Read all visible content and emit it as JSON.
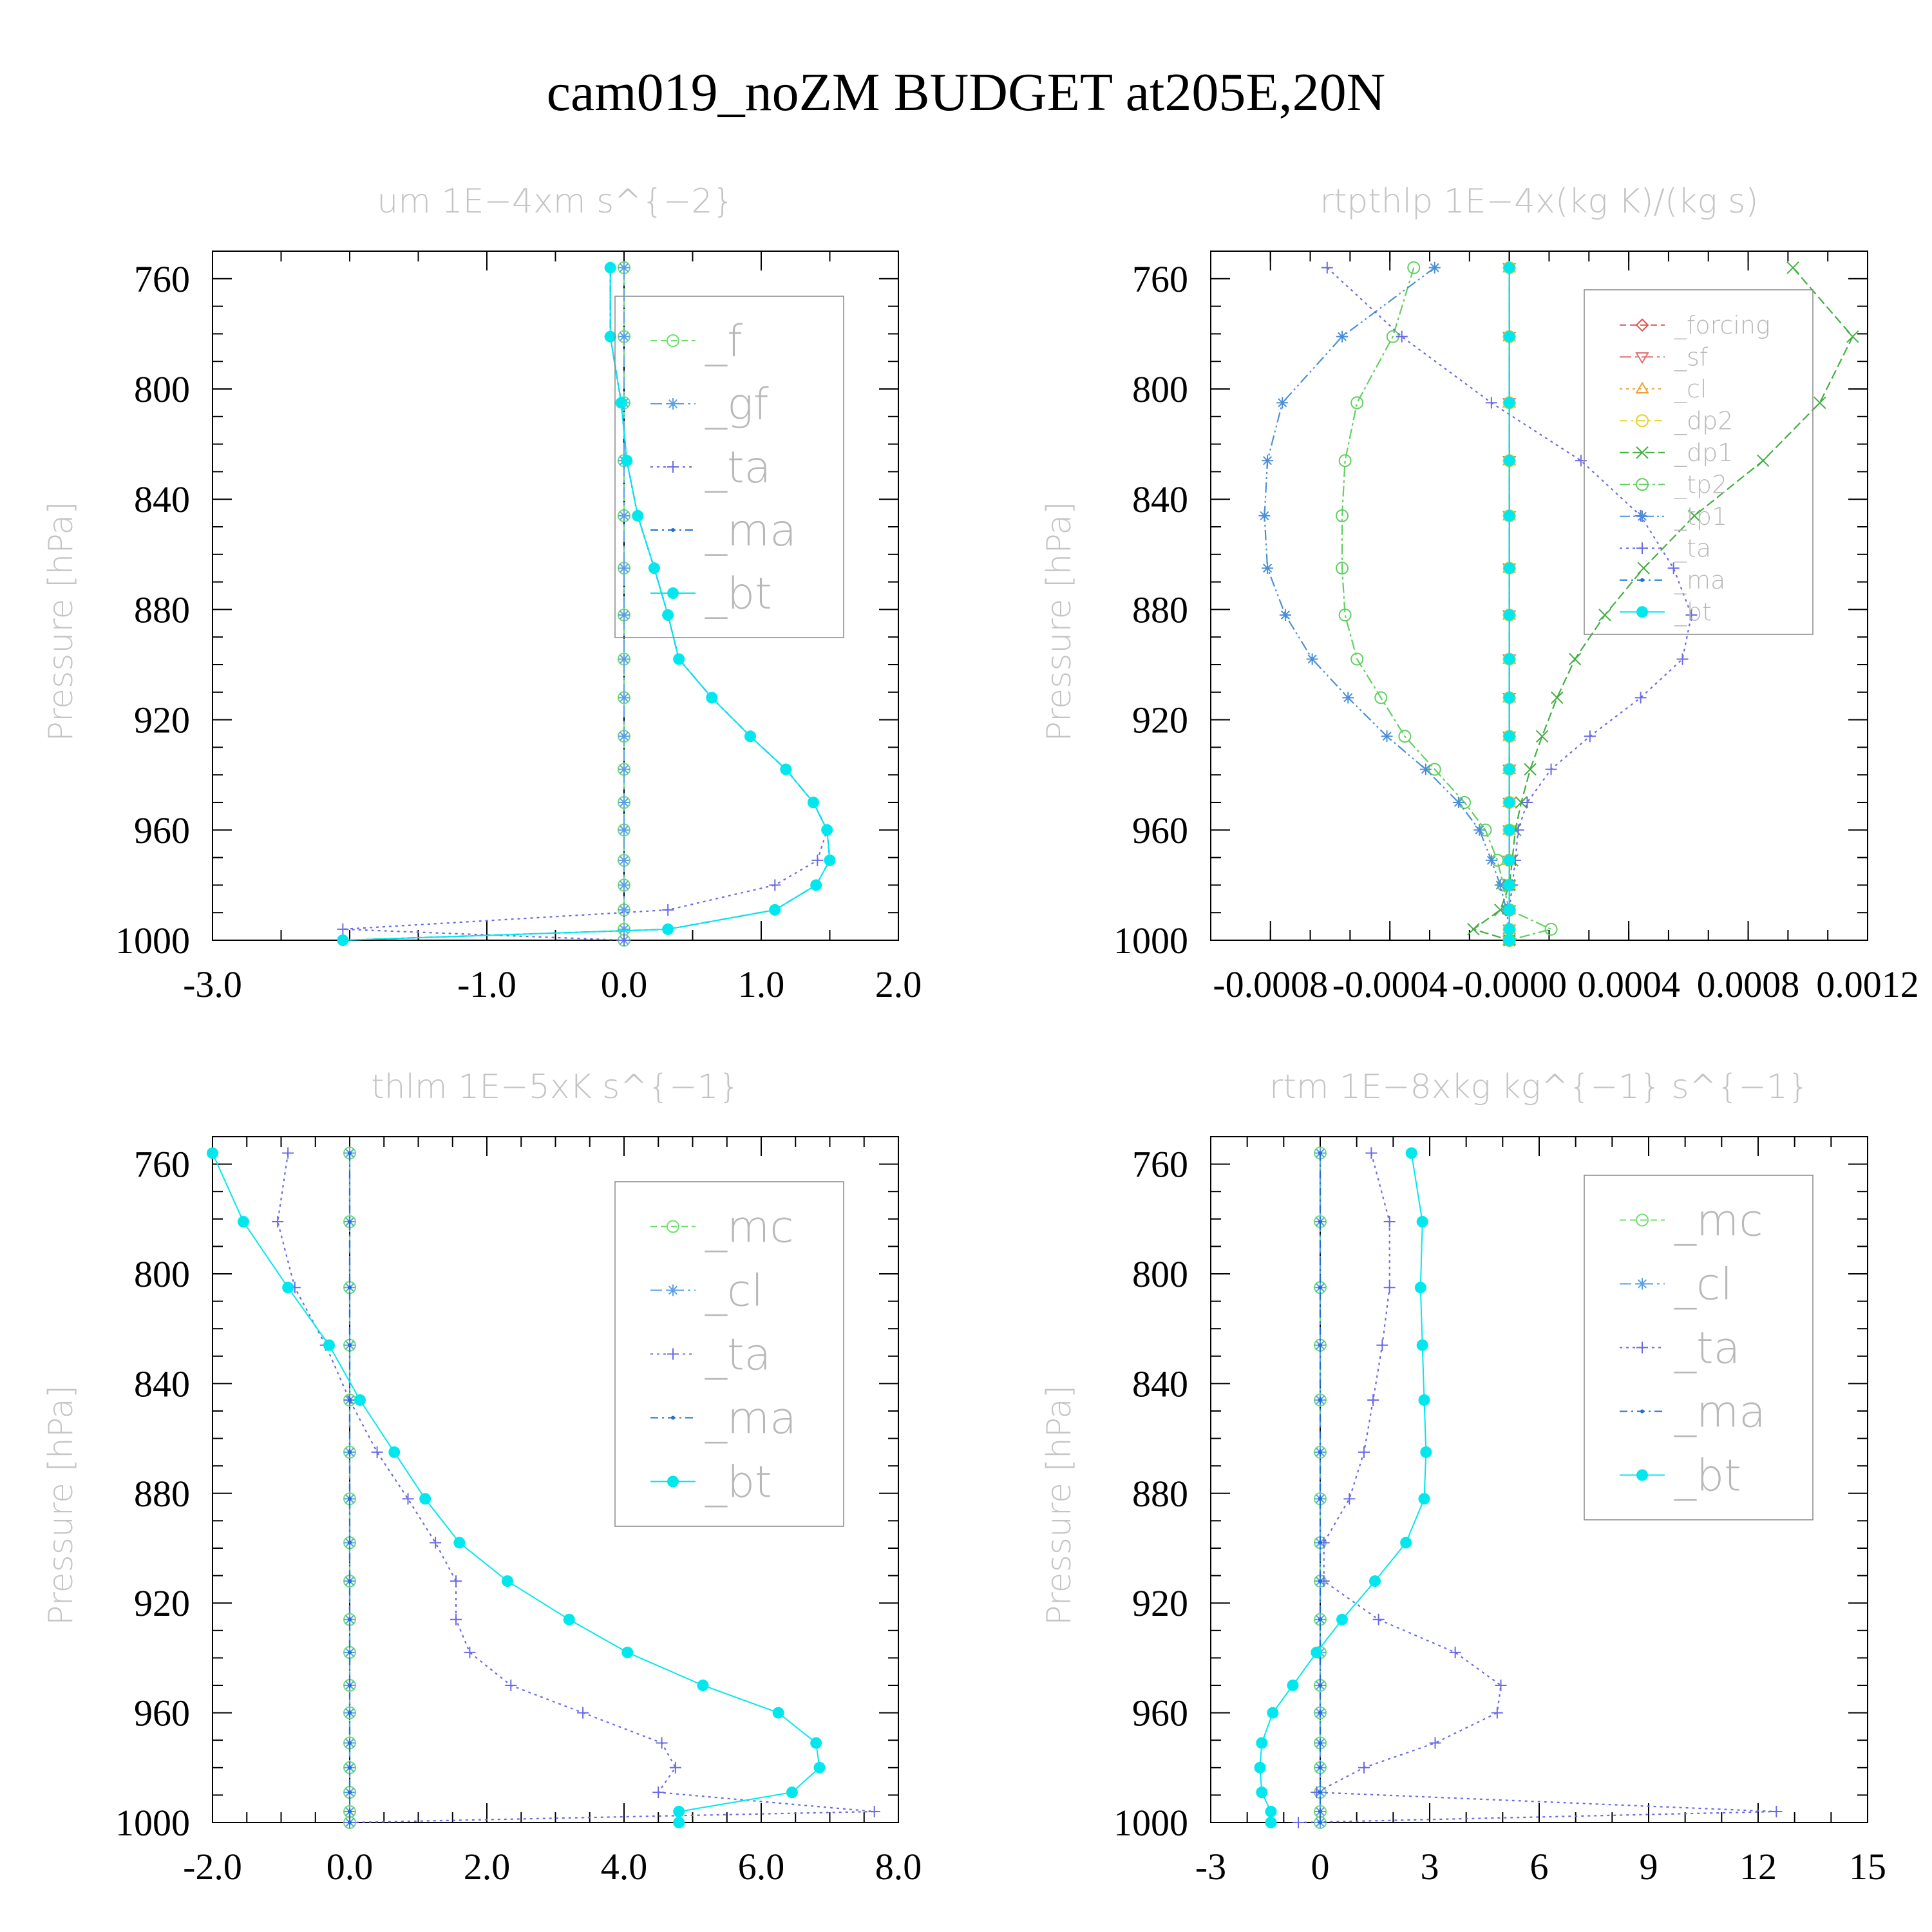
{
  "figure": {
    "title": "cam019_noZM  BUDGET at205E,20N"
  },
  "chart_data": [
    {
      "id": "um",
      "type": "line",
      "title": "um   1E−4xm s^{−2}",
      "ylabel": "Pressure [hPa]",
      "xlim": [
        -3.0,
        2.0
      ],
      "ylim": [
        1000,
        750
      ],
      "xticks": [
        "-3.0",
        "-1.0",
        "0.0",
        "1.0",
        "2.0"
      ],
      "xtick_values": [
        -3.0,
        -1.0,
        0.0,
        1.0,
        2.0
      ],
      "yticks": [
        "760",
        "800",
        "840",
        "880",
        "920",
        "960",
        "1000"
      ],
      "legend_position": "top-right",
      "levels": [
        756,
        781,
        805,
        826,
        846,
        865,
        882,
        898,
        912,
        926,
        938,
        950,
        960,
        971,
        980,
        989,
        996,
        1000
      ],
      "series": [
        {
          "name": "_f",
          "color": "#6fe06f",
          "marker": "circle",
          "dash": "10,6",
          "values": [
            0,
            0,
            0,
            0,
            0,
            0,
            0,
            0,
            0,
            0,
            0,
            0,
            0,
            0,
            0,
            0,
            0,
            0
          ]
        },
        {
          "name": "_gf",
          "color": "#5aa0e6",
          "marker": "star",
          "dash": "18,6,4,6",
          "values": [
            0,
            0,
            0,
            0,
            0,
            0,
            0,
            0,
            0,
            0,
            0,
            0,
            0,
            0,
            0,
            0,
            0,
            0
          ]
        },
        {
          "name": "_ta",
          "color": "#6a6ae6",
          "marker": "plus",
          "dash": "4,6",
          "values": [
            -0.1,
            -0.1,
            -0.02,
            0.02,
            0.1,
            0.22,
            0.32,
            0.4,
            0.64,
            0.92,
            1.18,
            1.38,
            1.48,
            1.41,
            1.1,
            0.32,
            -2.05,
            0.0
          ]
        },
        {
          "name": "_ma",
          "color": "#1f6fd6",
          "marker": "dot",
          "dash": "12,6,3,6",
          "values": [
            -0.1,
            -0.1,
            -0.02,
            0.02,
            0.1,
            0.22,
            0.32,
            0.4,
            0.64,
            0.92,
            1.18,
            1.38,
            1.48,
            1.5,
            1.4,
            1.1,
            0.32,
            -2.05
          ]
        },
        {
          "name": "_bt",
          "color": "#00e8ee",
          "marker": "bigdot",
          "dash": "",
          "values": [
            -0.1,
            -0.1,
            -0.02,
            0.02,
            0.1,
            0.22,
            0.32,
            0.4,
            0.64,
            0.92,
            1.18,
            1.38,
            1.48,
            1.5,
            1.4,
            1.1,
            0.32,
            -2.05
          ]
        }
      ]
    },
    {
      "id": "rtpthlp",
      "type": "line",
      "title": "rtpthlp   1E−4x(kg K)/(kg s)",
      "ylabel": "Pressure [hPa]",
      "xlim": [
        -0.001,
        0.0012
      ],
      "ylim": [
        1000,
        750
      ],
      "xticks": [
        "-0.0008",
        "-0.0004",
        "-0.0000",
        "0.0004",
        "0.0008",
        "0.0012"
      ],
      "xtick_values": [
        -0.0008,
        -0.0004,
        0.0,
        0.0004,
        0.0008,
        0.0012
      ],
      "yticks": [
        "760",
        "800",
        "840",
        "880",
        "920",
        "960",
        "1000"
      ],
      "legend_position": "top-right",
      "levels": [
        756,
        781,
        805,
        826,
        846,
        865,
        882,
        898,
        912,
        926,
        938,
        950,
        960,
        971,
        980,
        989,
        996,
        1000
      ],
      "series": [
        {
          "name": "_forcing",
          "color": "#e05050",
          "marker": "diamond",
          "dash": "10,6",
          "values": [
            0,
            0,
            0,
            0,
            0,
            0,
            0,
            0,
            0,
            0,
            0,
            0,
            0,
            0,
            0,
            0,
            0,
            0
          ]
        },
        {
          "name": "_sf",
          "color": "#e07070",
          "marker": "tri-down",
          "dash": "18,6,4,6",
          "values": [
            0,
            0,
            0,
            0,
            0,
            0,
            0,
            0,
            0,
            0,
            0,
            0,
            0,
            0,
            0,
            0,
            0,
            0
          ]
        },
        {
          "name": "_cl",
          "color": "#f0a030",
          "marker": "tri-up",
          "dash": "4,6",
          "values": [
            0,
            0,
            0,
            0,
            0,
            0,
            0,
            0,
            0,
            0,
            0,
            0,
            0,
            0,
            0,
            0,
            0,
            0
          ]
        },
        {
          "name": "_dp2",
          "color": "#e8d020",
          "marker": "circle",
          "dash": "12,6,3,6",
          "values": [
            0,
            0,
            0,
            0,
            0,
            0,
            0,
            0,
            0,
            0,
            0,
            0,
            0,
            0,
            0,
            0,
            0,
            0
          ]
        },
        {
          "name": "_dp1",
          "color": "#40b040",
          "marker": "cross",
          "dash": "14,6",
          "values": [
            0.00095,
            0.00115,
            0.00104,
            0.00085,
            0.00062,
            0.00045,
            0.00032,
            0.00022,
            0.00016,
            0.00011,
            7e-05,
            4e-05,
            2e-05,
            1e-05,
            0.0,
            -3e-05,
            -0.00012,
            0.0
          ]
        },
        {
          "name": "_tp2",
          "color": "#60d060",
          "marker": "circle",
          "dash": "16,5,4,5",
          "values": [
            -0.00032,
            -0.00039,
            -0.00051,
            -0.00055,
            -0.00056,
            -0.00056,
            -0.00055,
            -0.00051,
            -0.00043,
            -0.00035,
            -0.00025,
            -0.00015,
            -8e-05,
            -4e-05,
            -2e-05,
            0.0,
            0.00014,
            0.0
          ]
        },
        {
          "name": "_tp1",
          "color": "#4a90d8",
          "marker": "star",
          "dash": "16,5,3,5,3,5",
          "values": [
            -0.00025,
            -0.00056,
            -0.00076,
            -0.00081,
            -0.00082,
            -0.00081,
            -0.00075,
            -0.00066,
            -0.00054,
            -0.00041,
            -0.00028,
            -0.00017,
            -0.0001,
            -6e-05,
            -3e-05,
            -1e-05,
            0.0,
            0.0
          ]
        },
        {
          "name": "_ta",
          "color": "#6a6ae6",
          "marker": "plus",
          "dash": "4,6",
          "values": [
            -0.00061,
            -0.00036,
            -6e-05,
            0.00024,
            0.00044,
            0.00055,
            0.00061,
            0.00058,
            0.00044,
            0.00027,
            0.00014,
            6e-05,
            3e-05,
            2e-05,
            1e-05,
            0.0,
            0.0,
            0.0
          ]
        },
        {
          "name": "_ma",
          "color": "#1f6fd6",
          "marker": "dot",
          "dash": "12,6,3,6",
          "values": [
            0,
            0,
            0,
            0,
            0,
            0,
            0,
            0,
            0,
            0,
            0,
            0,
            0,
            0,
            0,
            0,
            0,
            0
          ]
        },
        {
          "name": "_bt",
          "color": "#00e8ee",
          "marker": "bigdot",
          "dash": "",
          "values": [
            0,
            0,
            0,
            0,
            0,
            0,
            0,
            0,
            0,
            0,
            0,
            0,
            0,
            0,
            0,
            0,
            0,
            0
          ]
        }
      ]
    },
    {
      "id": "thlm",
      "type": "line",
      "title": "thlm   1E−5xK s^{−1}",
      "ylabel": "Pressure [hPa]",
      "xlim": [
        -2.0,
        8.0
      ],
      "ylim": [
        1000,
        750
      ],
      "xticks": [
        "-2.0",
        "0.0",
        "2.0",
        "4.0",
        "6.0",
        "8.0"
      ],
      "xtick_values": [
        -2.0,
        0.0,
        2.0,
        4.0,
        6.0,
        8.0
      ],
      "yticks": [
        "760",
        "800",
        "840",
        "880",
        "920",
        "960",
        "1000"
      ],
      "legend_position": "top-right",
      "levels": [
        756,
        781,
        805,
        826,
        846,
        865,
        882,
        898,
        912,
        926,
        938,
        950,
        960,
        971,
        980,
        989,
        996,
        1000
      ],
      "series": [
        {
          "name": "_mc",
          "color": "#6fe06f",
          "marker": "circle",
          "dash": "10,6",
          "values": [
            0,
            0,
            0,
            0,
            0,
            0,
            0,
            0,
            0,
            0,
            0,
            0,
            0,
            0,
            0,
            0,
            0,
            0
          ]
        },
        {
          "name": "_cl",
          "color": "#5aa0e6",
          "marker": "star",
          "dash": "18,6,4,6",
          "values": [
            0,
            0,
            0,
            0,
            0,
            0,
            0,
            0,
            0,
            0,
            0,
            0,
            0,
            0,
            0,
            0,
            0,
            0
          ]
        },
        {
          "name": "_ta",
          "color": "#6a6ae6",
          "marker": "plus",
          "dash": "4,6",
          "values": [
            -0.9,
            -1.05,
            -0.8,
            -0.35,
            0.0,
            0.4,
            0.85,
            1.25,
            1.55,
            1.55,
            1.75,
            2.35,
            3.4,
            4.55,
            4.75,
            4.5,
            7.65,
            0.0
          ]
        },
        {
          "name": "_ma",
          "color": "#1f6fd6",
          "marker": "dot",
          "dash": "12,6,3,6",
          "values": [
            0,
            0,
            0,
            0,
            0,
            0,
            0,
            0,
            0,
            0,
            0,
            0,
            0,
            0,
            0,
            0,
            0,
            0
          ]
        },
        {
          "name": "_bt",
          "color": "#00e8ee",
          "marker": "bigdot",
          "dash": "",
          "values": [
            -2.0,
            -1.55,
            -0.9,
            -0.3,
            0.15,
            0.65,
            1.1,
            1.6,
            2.3,
            3.2,
            4.05,
            5.15,
            6.25,
            6.8,
            6.85,
            6.45,
            4.8,
            4.8
          ]
        }
      ]
    },
    {
      "id": "rtm",
      "type": "line",
      "title": "rtm   1E−8xkg kg^{−1} s^{−1}",
      "ylabel": "Pressure [hPa]",
      "xlim": [
        -3,
        15
      ],
      "ylim": [
        1000,
        750
      ],
      "xticks": [
        "-3",
        "0",
        "3",
        "6",
        "9",
        "12",
        "15"
      ],
      "xtick_values": [
        -3,
        0,
        3,
        6,
        9,
        12,
        15
      ],
      "yticks": [
        "760",
        "800",
        "840",
        "880",
        "920",
        "960",
        "1000"
      ],
      "legend_position": "top-right",
      "levels": [
        756,
        781,
        805,
        826,
        846,
        865,
        882,
        898,
        912,
        926,
        938,
        950,
        960,
        971,
        980,
        989,
        996,
        1000
      ],
      "series": [
        {
          "name": "_mc",
          "color": "#6fe06f",
          "marker": "circle",
          "dash": "10,6",
          "values": [
            0,
            0,
            0,
            0,
            0,
            0,
            0,
            0,
            0,
            0,
            0,
            0,
            0,
            0,
            0,
            0,
            0,
            0
          ]
        },
        {
          "name": "_cl",
          "color": "#5aa0e6",
          "marker": "star",
          "dash": "18,6,4,6",
          "values": [
            0,
            0,
            0,
            0,
            0,
            0,
            0,
            0,
            0,
            0,
            0,
            0,
            0,
            0,
            0,
            0,
            0,
            0
          ]
        },
        {
          "name": "_ta",
          "color": "#6a6ae6",
          "marker": "plus",
          "dash": "4,6",
          "values": [
            1.4,
            1.9,
            1.9,
            1.7,
            1.45,
            1.2,
            0.8,
            0.1,
            0.1,
            1.6,
            3.7,
            4.95,
            4.85,
            3.15,
            1.2,
            -0.1,
            12.5,
            -0.6
          ]
        },
        {
          "name": "_ma",
          "color": "#1f6fd6",
          "marker": "dot",
          "dash": "12,6,3,6",
          "values": [
            0,
            0,
            0,
            0,
            0,
            0,
            0,
            0,
            0,
            0,
            0,
            0,
            0,
            0,
            0,
            0,
            0,
            0
          ]
        },
        {
          "name": "_bt",
          "color": "#00e8ee",
          "marker": "bigdot",
          "dash": "",
          "values": [
            2.5,
            2.8,
            2.75,
            2.8,
            2.85,
            2.9,
            2.85,
            2.35,
            1.5,
            0.6,
            -0.1,
            -0.75,
            -1.3,
            -1.6,
            -1.65,
            -1.6,
            -1.35,
            -1.35
          ]
        }
      ]
    }
  ]
}
